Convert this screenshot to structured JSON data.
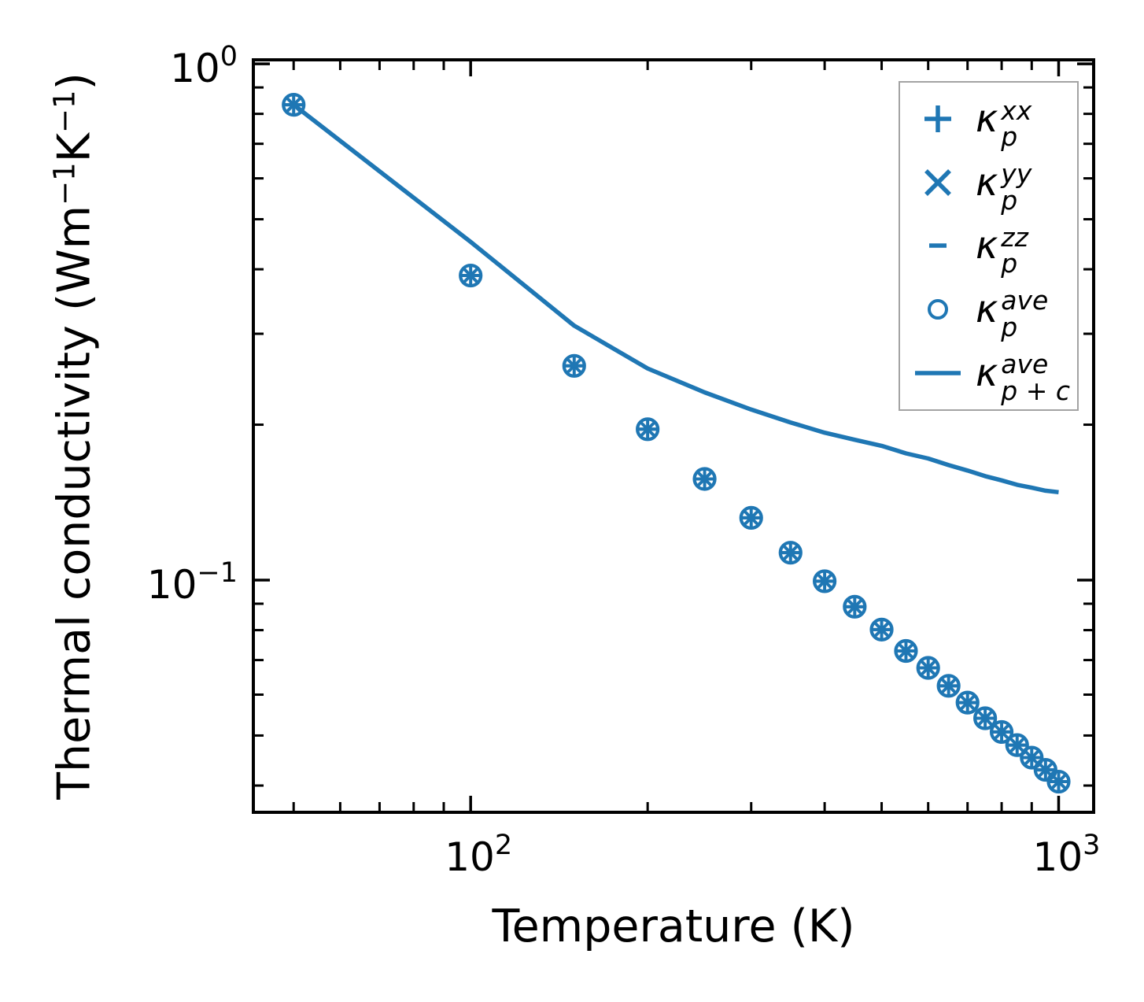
{
  "colors": {
    "series": "#1f77b4",
    "spine": "#000000",
    "text": "#000000",
    "legend_border": "#a3a3a3",
    "background": "#ffffff"
  },
  "chart_data": {
    "type": "scatter",
    "title": "",
    "xlabel": "Temperature (K)",
    "ylabel_parts": [
      {
        "t": "Thermal conductivity (Wm"
      },
      {
        "t": "−1",
        "sup": true
      },
      {
        "t": "K"
      },
      {
        "t": "−1",
        "sup": true
      },
      {
        "t": ")"
      }
    ],
    "xscale": "log",
    "yscale": "log",
    "xlim": [
      42.7,
      1147
    ],
    "ylim": [
      0.0355,
      1.018
    ],
    "grid": false,
    "tick_direction": "in",
    "legend_position": "upper right",
    "x": [
      50,
      100,
      150,
      200,
      250,
      300,
      350,
      400,
      450,
      500,
      550,
      600,
      650,
      700,
      750,
      800,
      850,
      900,
      950,
      1000
    ],
    "series": [
      {
        "name": "kappa-p-xx",
        "marker": "plus",
        "label": {
          "base": "κ",
          "sup": "xx",
          "sub": "p"
        },
        "values": [
          0.833,
          0.389,
          0.26,
          0.196,
          0.157,
          0.132,
          0.113,
          0.0995,
          0.0888,
          0.0802,
          0.0729,
          0.0676,
          0.0624,
          0.0579,
          0.054,
          0.0508,
          0.0479,
          0.0453,
          0.0429,
          0.0407
        ]
      },
      {
        "name": "kappa-p-yy",
        "marker": "x",
        "label": {
          "base": "κ",
          "sup": "yy",
          "sub": "p"
        },
        "values": [
          0.833,
          0.389,
          0.26,
          0.196,
          0.157,
          0.132,
          0.113,
          0.0995,
          0.0888,
          0.0802,
          0.0729,
          0.0676,
          0.0624,
          0.0579,
          0.054,
          0.0508,
          0.0479,
          0.0453,
          0.0429,
          0.0407
        ]
      },
      {
        "name": "kappa-p-zz",
        "marker": "dash",
        "label": {
          "base": "κ",
          "sup": "zz",
          "sub": "p"
        },
        "values": [
          0.833,
          0.389,
          0.26,
          0.196,
          0.157,
          0.132,
          0.113,
          0.0995,
          0.0888,
          0.0802,
          0.0729,
          0.0676,
          0.0624,
          0.0579,
          0.054,
          0.0508,
          0.0479,
          0.0453,
          0.0429,
          0.0407
        ]
      },
      {
        "name": "kappa-p-ave",
        "marker": "circle",
        "label": {
          "base": "κ",
          "sup": "ave",
          "sub": "p"
        },
        "values": [
          0.833,
          0.389,
          0.26,
          0.196,
          0.157,
          0.132,
          0.113,
          0.0995,
          0.0888,
          0.0802,
          0.0729,
          0.0676,
          0.0624,
          0.0579,
          0.054,
          0.0508,
          0.0479,
          0.0453,
          0.0429,
          0.0407
        ]
      },
      {
        "name": "kappa-p-plus-c-ave",
        "marker": "line",
        "label": {
          "base": "κ",
          "sup": "ave",
          "sub": "p + c"
        },
        "values": [
          0.833,
          0.452,
          0.311,
          0.257,
          0.231,
          0.214,
          0.202,
          0.193,
          0.187,
          0.182,
          0.176,
          0.172,
          0.167,
          0.163,
          0.159,
          0.156,
          0.153,
          0.151,
          0.149,
          0.148
        ]
      }
    ],
    "x_ticks": {
      "major": [
        {
          "value": 100,
          "base": "10",
          "exponent": "2"
        },
        {
          "value": 1000,
          "base": "10",
          "exponent": "3"
        }
      ],
      "minor": [
        50,
        60,
        70,
        80,
        90,
        200,
        300,
        400,
        500,
        600,
        700,
        800,
        900
      ]
    },
    "y_ticks": {
      "major": [
        {
          "value": 1,
          "base": "10",
          "exponent": "0"
        },
        {
          "value": 0.1,
          "base": "10",
          "exponent": "−1"
        }
      ],
      "minor": [
        0.9,
        0.8,
        0.7,
        0.6,
        0.5,
        0.4,
        0.3,
        0.2,
        0.09,
        0.08,
        0.07,
        0.06,
        0.05,
        0.04
      ]
    }
  }
}
